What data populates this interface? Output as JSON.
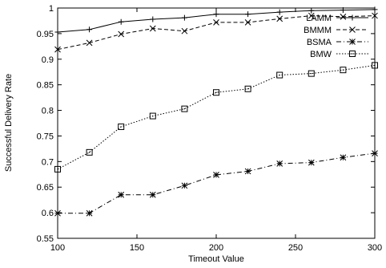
{
  "chart_data": {
    "type": "line",
    "title": "",
    "xlabel": "Timeout Value",
    "ylabel": "Successful Delivery Rate",
    "xlim": [
      100,
      300
    ],
    "ylim": [
      0.55,
      1.0
    ],
    "xticks": [
      "100",
      "150",
      "200",
      "250",
      "300"
    ],
    "yticks": [
      "0.55",
      "0.6",
      "0.65",
      "0.7",
      "0.75",
      "0.8",
      "0.85",
      "0.9",
      "0.95",
      "1"
    ],
    "grid": false,
    "legend_position": "top-right",
    "x": [
      100,
      120,
      140,
      160,
      180,
      200,
      220,
      240,
      260,
      280,
      300
    ],
    "series": [
      {
        "name": "LAMM",
        "marker": "plus",
        "line_style": "solid",
        "values": [
          0.953,
          0.958,
          0.973,
          0.978,
          0.981,
          0.988,
          0.988,
          0.992,
          0.995,
          0.996,
          0.997
        ]
      },
      {
        "name": "BMMM",
        "marker": "cross",
        "line_style": "dashed",
        "values": [
          0.919,
          0.932,
          0.949,
          0.96,
          0.955,
          0.972,
          0.972,
          0.979,
          0.985,
          0.983,
          0.985
        ]
      },
      {
        "name": "BSMA",
        "marker": "star",
        "line_style": "dash-dot",
        "values": [
          0.599,
          0.599,
          0.635,
          0.635,
          0.653,
          0.674,
          0.681,
          0.696,
          0.698,
          0.708,
          0.716
        ]
      },
      {
        "name": "BMW",
        "marker": "square",
        "line_style": "dotted",
        "values": [
          0.685,
          0.718,
          0.768,
          0.789,
          0.803,
          0.835,
          0.842,
          0.869,
          0.872,
          0.879,
          0.888
        ]
      }
    ]
  }
}
